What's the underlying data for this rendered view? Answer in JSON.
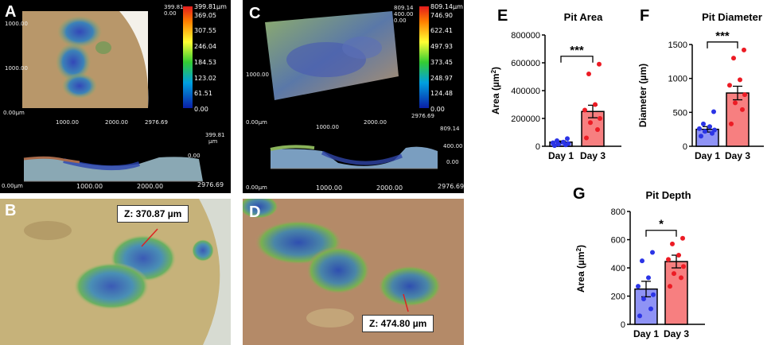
{
  "panels": {
    "A": {
      "letter": "A",
      "colorbar_ticks": [
        "399.81µm",
        "369.05",
        "307.55",
        "246.04",
        "184.53",
        "123.02",
        "61.51",
        "0.00"
      ],
      "axis_top_left": "1000.00",
      "axis_mid_left": "1000.00",
      "axis_bottom_left": "0.00µm",
      "axis_bottom_ticks": [
        "1000.00",
        "2000.00",
        "2976.69"
      ],
      "legend_high": "399.81",
      "legend_low": "0.00",
      "profile_ticks": [
        "1000.00",
        "2000.00",
        "2976.69"
      ],
      "profile_zero": "0.00µm",
      "profile_top": "399.81",
      "profile_unit": "µm",
      "profile_low": "0.00"
    },
    "B": {
      "letter": "B",
      "z_label": "Z: 370.87 µm"
    },
    "C": {
      "letter": "C",
      "colorbar_ticks": [
        "809.14µm",
        "746.90",
        "622.41",
        "497.93",
        "373.45",
        "248.97",
        "124.48",
        "0.00"
      ],
      "axis_mid_left": "1000.00",
      "axis_bottom_left": "0.00µm",
      "axis_bottom_ticks": [
        "1000.00",
        "2000.00",
        "2976.69"
      ],
      "legend_high": "809.14",
      "legend_mid": "400.00",
      "legend_low": "0.00",
      "profile_ticks": [
        "1000.00",
        "2000.00",
        "2976.69"
      ],
      "profile_zero": "0.00µm",
      "profile_top": "809.14",
      "profile_mid": "400.00",
      "profile_low": "0.00"
    },
    "D": {
      "letter": "D",
      "z_label": "Z: 474.80 µm"
    }
  },
  "colors": {
    "day1": "#8f93f5",
    "day1_dot": "#2b34e6",
    "day3": "#f77f80",
    "day3_dot": "#ec1b24"
  },
  "chart_data": [
    {
      "panel": "E",
      "type": "bar",
      "title": "Pit Area",
      "categories": [
        "Day 1",
        "Day 3"
      ],
      "values": [
        30000,
        250000
      ],
      "errors": [
        8000,
        45000
      ],
      "points": [
        [
          5000,
          10000,
          15000,
          20000,
          25000,
          30000,
          40000,
          55000
        ],
        [
          60000,
          120000,
          170000,
          200000,
          260000,
          300000,
          520000,
          590000
        ]
      ],
      "ylabel": "Area (µm²)",
      "ylabel_parts": [
        "Area (µm",
        "2",
        ")"
      ],
      "ylim": [
        0,
        800000
      ],
      "yticks": [
        "0",
        "200000",
        "400000",
        "600000",
        "800000"
      ],
      "significance": "***"
    },
    {
      "panel": "F",
      "type": "bar",
      "title": "Pit Diameter",
      "categories": [
        "Day 1",
        "Day 3"
      ],
      "values": [
        250,
        785
      ],
      "errors": [
        40,
        100
      ],
      "points": [
        [
          150,
          190,
          220,
          240,
          260,
          290,
          330,
          510
        ],
        [
          330,
          540,
          640,
          760,
          900,
          980,
          1300,
          1420
        ]
      ],
      "ylabel": "Diameter (µm)",
      "ylabel_parts": [
        "Diameter (µm)"
      ],
      "ylim": [
        0,
        1500
      ],
      "yticks": [
        "0",
        "500",
        "1000",
        "1500"
      ],
      "significance": "***"
    },
    {
      "panel": "G",
      "type": "bar",
      "title": "Pit Depth",
      "categories": [
        "Day 1",
        "Day 3"
      ],
      "values": [
        250,
        445
      ],
      "errors": [
        55,
        45
      ],
      "points": [
        [
          60,
          110,
          180,
          210,
          270,
          330,
          450,
          510
        ],
        [
          270,
          330,
          360,
          410,
          460,
          490,
          570,
          610
        ]
      ],
      "ylabel": "Area (µm²)",
      "ylabel_parts": [
        "Area (µm",
        "2",
        ")"
      ],
      "ylim": [
        0,
        800
      ],
      "yticks": [
        "0",
        "200",
        "400",
        "600",
        "800"
      ],
      "significance": "*"
    }
  ]
}
